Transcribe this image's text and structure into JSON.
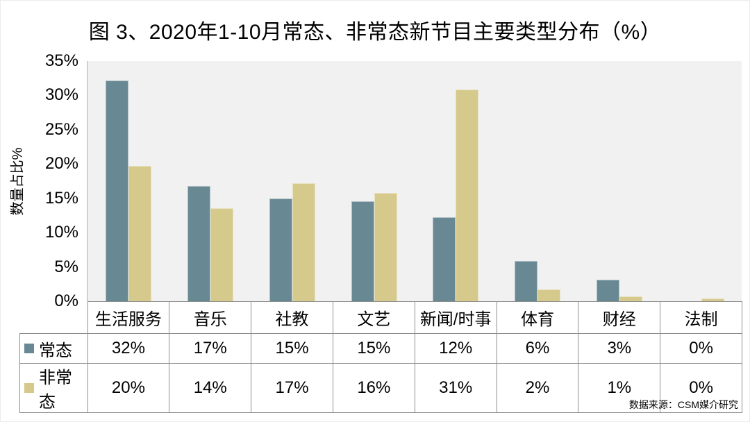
{
  "chart_data": {
    "type": "bar",
    "title": "图 3、2020年1-10月常态、非常态新节目主要类型分布（%）",
    "ylabel": "数量占比%",
    "ylim": [
      0,
      35
    ],
    "ytick_step": 5,
    "yticks": [
      "0%",
      "5%",
      "10%",
      "15%",
      "20%",
      "25%",
      "30%",
      "35%"
    ],
    "grid": false,
    "legend_position": "table-left",
    "plot_bg": "#f1f1f1",
    "categories": [
      "生活服务",
      "音乐",
      "社教",
      "文艺",
      "新闻/时事",
      "体育",
      "财经",
      "法制"
    ],
    "series": [
      {
        "name": "常态",
        "color": "#688993",
        "values": [
          32.2,
          16.8,
          15.0,
          14.6,
          12.2,
          5.9,
          3.1,
          0.0
        ],
        "table_labels": [
          "32%",
          "17%",
          "15%",
          "15%",
          "12%",
          "6%",
          "3%",
          "0%"
        ]
      },
      {
        "name": "非常态",
        "color": "#d5c98c",
        "values": [
          19.7,
          13.6,
          17.2,
          15.8,
          30.9,
          1.7,
          0.7,
          0.4
        ],
        "table_labels": [
          "20%",
          "14%",
          "17%",
          "16%",
          "31%",
          "2%",
          "1%",
          "0%"
        ]
      }
    ],
    "source": "数据来源：CSM媒介研究"
  }
}
